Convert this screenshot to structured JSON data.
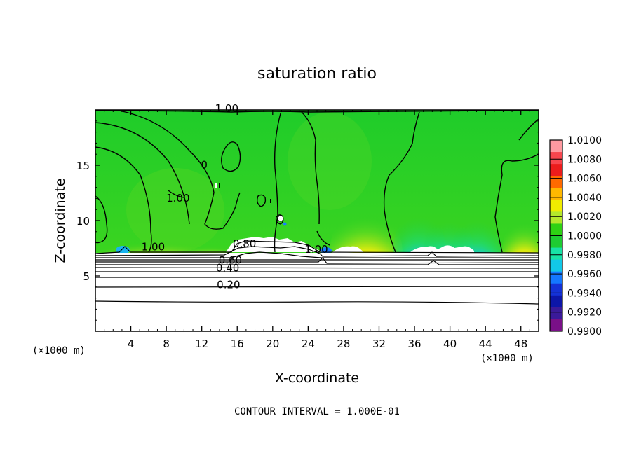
{
  "chart_data": {
    "type": "heatmap",
    "title": "saturation ratio",
    "xlabel": "X-coordinate",
    "ylabel": "Z-coordinate",
    "x_unit": "(×1000 m)",
    "x_ticks": [
      4,
      8,
      12,
      16,
      20,
      24,
      28,
      32,
      36,
      40,
      44,
      48
    ],
    "y_ticks": [
      5,
      10,
      15
    ],
    "xlim": [
      0,
      50
    ],
    "ylim": [
      0,
      20
    ],
    "footer": "CONTOUR INTERVAL = 1.000E-01",
    "colorbar": {
      "levels": [
        "1.0100",
        "1.0080",
        "1.0060",
        "1.0040",
        "1.0020",
        "1.0000",
        "0.9980",
        "0.9960",
        "0.9940",
        "0.9920",
        "0.9900"
      ],
      "colors": [
        "#ff9aa0",
        "#f8464e",
        "#ec1c1c",
        "#ff6a00",
        "#ffb800",
        "#f0ec00",
        "#b4e82c",
        "#2ed214",
        "#1ecc32",
        "#18e2a6",
        "#12c8e8",
        "#1478ff",
        "#1432d6",
        "#0c16a8",
        "#3a1a9a",
        "#7a1088"
      ]
    },
    "contour_labels": [
      {
        "text": "1.00",
        "x": 13.5,
        "y": 19.8
      },
      {
        "text": "1.00",
        "x": 8.0,
        "y": 11.7
      },
      {
        "text": "0",
        "x": 11.9,
        "y": 14.7
      },
      {
        "text": "1.00",
        "x": 5.2,
        "y": 7.3
      },
      {
        "text": "0.80",
        "x": 15.5,
        "y": 7.6
      },
      {
        "text": "0.60",
        "x": 13.9,
        "y": 6.1
      },
      {
        "text": "0.40",
        "x": 13.6,
        "y": 5.4
      },
      {
        "text": "0.20",
        "x": 13.7,
        "y": 3.9
      },
      {
        "text": "1.00",
        "x": 23.6,
        "y": 7.1
      }
    ]
  }
}
